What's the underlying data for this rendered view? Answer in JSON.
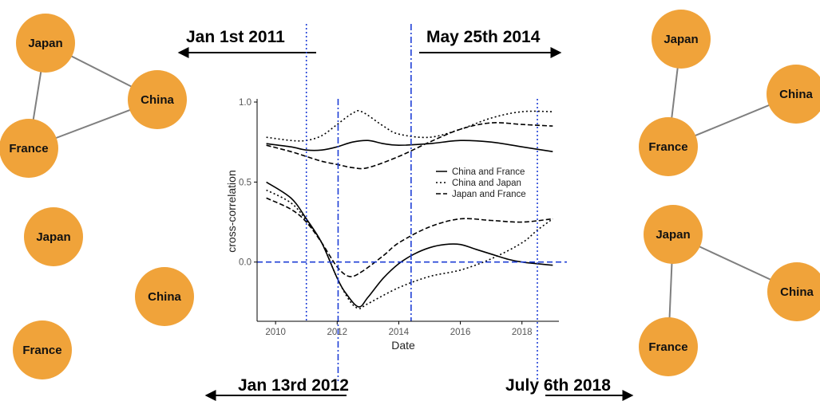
{
  "colors": {
    "node_fill": "#F0A33A",
    "edge": "#7f7f7f",
    "marker_line": "#1f3fd6",
    "series_line": "#000000"
  },
  "annotations": {
    "top_left": "Jan 1st 2011",
    "top_right": "May 25th 2014",
    "bottom_left": "Jan 13rd 2012",
    "bottom_right": "July 6th 2018"
  },
  "networks": [
    {
      "position": "top-left",
      "nodes": [
        "Japan",
        "China",
        "France"
      ],
      "edges": [
        [
          "Japan",
          "China"
        ],
        [
          "Japan",
          "France"
        ],
        [
          "France",
          "China"
        ]
      ]
    },
    {
      "position": "bottom-left",
      "nodes": [
        "Japan",
        "China",
        "France"
      ],
      "edges": []
    },
    {
      "position": "top-right",
      "nodes": [
        "Japan",
        "China",
        "France"
      ],
      "edges": [
        [
          "Japan",
          "France"
        ],
        [
          "France",
          "China"
        ]
      ]
    },
    {
      "position": "bottom-right",
      "nodes": [
        "Japan",
        "China",
        "France"
      ],
      "edges": [
        [
          "Japan",
          "China"
        ],
        [
          "Japan",
          "France"
        ]
      ]
    }
  ],
  "chart_data": {
    "type": "line",
    "title": "",
    "xlabel": "Date",
    "ylabel": "cross-correlation",
    "xlim": [
      2009.4,
      2019.2
    ],
    "ylim": [
      -0.37,
      1.02
    ],
    "x_ticks": [
      "2010",
      "2012",
      "2014",
      "2016",
      "2018"
    ],
    "y_ticks": [
      "0.0",
      "0.5",
      "1.0"
    ],
    "grid": false,
    "legend_position": "right",
    "horizontal_reference_line": 0.0,
    "vertical_reference_lines": [
      {
        "date": "Jan 1st 2011",
        "x": 2011.0,
        "style": "dotted"
      },
      {
        "date": "Jan 13rd 2012",
        "x": 2012.03,
        "style": "dashdot"
      },
      {
        "date": "May 25th 2014",
        "x": 2014.4,
        "style": "dashdot"
      },
      {
        "date": "July 6th 2018",
        "x": 2018.5,
        "style": "dotted"
      }
    ],
    "series": [
      {
        "name": "China and France",
        "style": "solid",
        "group": "upper",
        "x": [
          2009.7,
          2010.5,
          2011.0,
          2011.5,
          2012.0,
          2012.5,
          2013.0,
          2013.5,
          2014.0,
          2015.0,
          2016.0,
          2017.0,
          2018.0,
          2019.0
        ],
        "y": [
          0.74,
          0.72,
          0.7,
          0.7,
          0.72,
          0.75,
          0.76,
          0.74,
          0.73,
          0.74,
          0.76,
          0.75,
          0.72,
          0.69
        ]
      },
      {
        "name": "China and Japan",
        "style": "dotted",
        "group": "upper",
        "x": [
          2009.7,
          2010.5,
          2011.0,
          2011.5,
          2012.0,
          2012.5,
          2012.8,
          2013.5,
          2014.0,
          2015.0,
          2016.0,
          2017.0,
          2018.0,
          2019.0
        ],
        "y": [
          0.78,
          0.76,
          0.76,
          0.79,
          0.86,
          0.93,
          0.94,
          0.85,
          0.8,
          0.78,
          0.83,
          0.9,
          0.94,
          0.94
        ]
      },
      {
        "name": "Japan and France",
        "style": "dashed",
        "group": "upper",
        "x": [
          2009.7,
          2010.5,
          2011.0,
          2011.5,
          2012.0,
          2012.5,
          2013.0,
          2014.0,
          2015.0,
          2016.0,
          2017.0,
          2018.0,
          2019.0
        ],
        "y": [
          0.73,
          0.69,
          0.66,
          0.63,
          0.61,
          0.59,
          0.59,
          0.66,
          0.75,
          0.83,
          0.87,
          0.86,
          0.85
        ]
      },
      {
        "name": "China and France",
        "style": "solid",
        "group": "lower",
        "x": [
          2009.7,
          2010.5,
          2011.0,
          2011.5,
          2012.0,
          2012.3,
          2012.7,
          2013.0,
          2013.5,
          2014.0,
          2014.5,
          2015.0,
          2015.5,
          2016.0,
          2016.5,
          2017.0,
          2017.5,
          2018.0,
          2019.0
        ],
        "y": [
          0.5,
          0.4,
          0.27,
          0.12,
          -0.1,
          -0.2,
          -0.28,
          -0.22,
          -0.1,
          -0.01,
          0.05,
          0.09,
          0.11,
          0.11,
          0.08,
          0.05,
          0.02,
          0.0,
          -0.02
        ]
      },
      {
        "name": "China and Japan",
        "style": "dotted",
        "group": "lower",
        "x": [
          2009.7,
          2010.5,
          2011.0,
          2011.5,
          2012.0,
          2012.4,
          2012.7,
          2013.0,
          2014.0,
          2015.0,
          2016.0,
          2017.0,
          2018.0,
          2018.5,
          2019.0
        ],
        "y": [
          0.45,
          0.37,
          0.26,
          0.12,
          -0.1,
          -0.24,
          -0.29,
          -0.26,
          -0.16,
          -0.09,
          -0.05,
          0.02,
          0.12,
          0.2,
          0.27
        ]
      },
      {
        "name": "Japan and France",
        "style": "dashed",
        "group": "lower",
        "x": [
          2009.7,
          2010.5,
          2011.0,
          2011.5,
          2012.0,
          2012.4,
          2012.8,
          2013.5,
          2014.0,
          2015.0,
          2016.0,
          2017.0,
          2018.0,
          2019.0
        ],
        "y": [
          0.4,
          0.33,
          0.25,
          0.12,
          -0.03,
          -0.09,
          -0.06,
          0.04,
          0.12,
          0.22,
          0.27,
          0.26,
          0.25,
          0.27
        ]
      }
    ],
    "legend": [
      "China and France",
      "China and Japan",
      "Japan and France"
    ]
  }
}
